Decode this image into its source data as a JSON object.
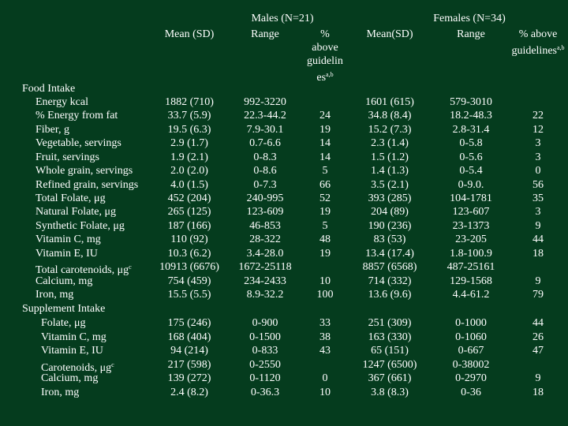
{
  "header": {
    "males": "Males (N=21)",
    "females": "Females (N=34)",
    "columns": [
      {
        "text": "Mean (SD)"
      },
      {
        "text": "Range"
      },
      {
        "text": "% above guidelines",
        "note": "a,b"
      },
      {
        "text": "Mean(SD)"
      },
      {
        "text": "Range"
      },
      {
        "text": "% above guidelines",
        "note": "a,b"
      }
    ]
  },
  "sections": [
    {
      "title": "Food Intake",
      "rows": [
        {
          "label": "Energy kcal",
          "cells": [
            "1882 (710)",
            "992-3220",
            null,
            "1601 (615)",
            "579-3010",
            null
          ]
        },
        {
          "label": "% Energy from fat",
          "cells": [
            "33.7 (5.9)",
            "22.3-44.2",
            "24",
            "34.8 (8.4)",
            "18.2-48.3",
            "22"
          ]
        },
        {
          "label": "Fiber, g",
          "cells": [
            "19.5 (6.3)",
            "7.9-30.1",
            "19",
            "15.2 (7.3)",
            "2.8-31.4",
            "12"
          ]
        },
        {
          "label": "Vegetable, servings",
          "cells": [
            "2.9 (1.7)",
            "0.7-6.6",
            "14",
            "2.3 (1.4)",
            "0-5.8",
            "3"
          ]
        },
        {
          "label": "Fruit, servings",
          "cells": [
            "1.9 (2.1)",
            "0-8.3",
            "14",
            "1.5 (1.2)",
            "0-5.6",
            "3"
          ]
        },
        {
          "label": "Whole grain, servings",
          "cells": [
            "2.0 (2.0)",
            "0-8.6",
            "5",
            "1.4 (1.3)",
            "0-5.4",
            "0"
          ]
        },
        {
          "label": "Refined grain, servings",
          "cells": [
            "4.0 (1.5)",
            "0-7.3",
            "66",
            "3.5 (2.1)",
            "0-9.0.",
            "56"
          ]
        },
        {
          "label": "Total Folate, μg",
          "cells": [
            "452 (204)",
            "240-995",
            "52",
            "393 (285)",
            "104-1781",
            "35"
          ]
        },
        {
          "label": "Natural Folate, μg",
          "cells": [
            "265 (125)",
            "123-609",
            "19",
            "204 (89)",
            "123-607",
            "3"
          ]
        },
        {
          "label": "Synthetic Folate, μg",
          "cells": [
            "187 (166)",
            "46-853",
            "5",
            "190 (236)",
            "23-1373",
            "9"
          ]
        },
        {
          "label": "Vitamin C, mg",
          "cells": [
            "110 (92)",
            "28-322",
            "48",
            "83 (53)",
            "23-205",
            "44"
          ]
        },
        {
          "label": "Vitamin E, IU",
          "cells": [
            "10.3 (6.2)",
            "3.4-28.0",
            "19",
            "13.4 (17.4)",
            "1.8-100.9",
            "18"
          ]
        },
        {
          "label": "Total carotenoids, μg",
          "note": "c",
          "cells": [
            "10913 (6676)",
            "1672-25118",
            null,
            "8857 (6568)",
            "487-25161",
            null
          ]
        },
        {
          "label": "Calcium, mg",
          "cells": [
            "754 (459)",
            "234-2433",
            "10",
            "714 (332)",
            "129-1568",
            "9"
          ]
        },
        {
          "label": "Iron, mg",
          "cells": [
            "15.5 (5.5)",
            "8.9-32.2",
            "100",
            "13.6 (9.6)",
            "4.4-61.2",
            "79"
          ]
        }
      ]
    },
    {
      "title": "Supplement Intake",
      "rows": [
        {
          "label": "Folate, μg",
          "cells": [
            "175 (246)",
            "0-900",
            "33",
            "251 (309)",
            "0-1000",
            "44"
          ]
        },
        {
          "label": "Vitamin C, mg",
          "cells": [
            "168 (404)",
            "0-1500",
            "38",
            "163 (330)",
            "0-1060",
            "26"
          ]
        },
        {
          "label": "Vitamin E, IU",
          "cells": [
            "94 (214)",
            "0-833",
            "43",
            "65 (151)",
            "0-667",
            "47"
          ]
        },
        {
          "label": "Carotenoids, μg",
          "note": "c",
          "cells": [
            "217 (598)",
            "0-2550",
            null,
            "1247 (6500)",
            "0-38002",
            null
          ]
        },
        {
          "label": "Calcium, mg",
          "cells": [
            "139 (272)",
            "0-1120",
            "0",
            "367 (661)",
            "0-2970",
            "9"
          ]
        },
        {
          "label": "Iron, mg",
          "cells": [
            "2.4 (8.2)",
            "0-36.3",
            "10",
            "3.8 (8.3)",
            "0-36",
            "18"
          ]
        }
      ]
    }
  ]
}
